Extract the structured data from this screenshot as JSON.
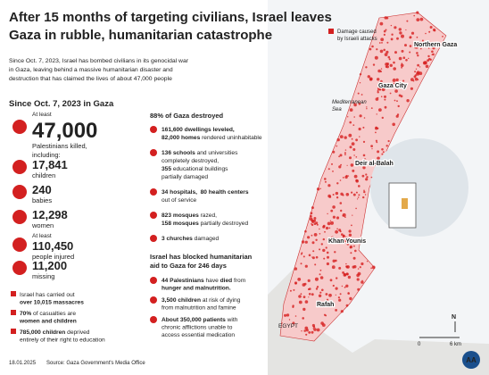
{
  "header": {
    "title": [
      "After 15 months of targeting civilians, Israel leaves",
      "Gaza in rubble, humanitarian catastrophe"
    ],
    "intro": [
      "Since Oct. 7, 2023, Israel has bombed civilians in its genocidal war",
      "in Gaza, leaving behind a massive humanitarian disaster and",
      "destruction that has claimed the lives of about 47,000 people"
    ]
  },
  "left": {
    "heading": "Since Oct. 7, 2023 in Gaza",
    "stats": [
      {
        "pre": "At least",
        "number": "47,000",
        "label": [
          "Palestinians killed,",
          "including:"
        ]
      },
      {
        "number": "17,841",
        "label": [
          "children"
        ]
      },
      {
        "number": "240",
        "label": [
          "babies"
        ]
      },
      {
        "number": "12,298",
        "label": [
          "women"
        ]
      },
      {
        "pre": "At least",
        "number": "110,450",
        "label": [
          "people injured"
        ]
      },
      {
        "number": "11,200",
        "label": [
          "missing"
        ]
      }
    ],
    "notes": [
      [
        [
          {
            "t": "Israel has carried out"
          }
        ],
        [
          {
            "t": "over 10,015 massacres",
            "b": true
          }
        ]
      ],
      [
        [
          {
            "t": "70%",
            "b": true
          },
          {
            "t": " of casualties are"
          }
        ],
        [
          {
            "t": "women and children",
            "b": true
          }
        ]
      ],
      [
        [
          {
            "t": "785,000 children",
            "b": true
          },
          {
            "t": " deprived"
          }
        ],
        [
          {
            "t": "entirely of their right to education"
          }
        ]
      ]
    ]
  },
  "middle": {
    "heading1": [
      "88% of Gaza destroyed"
    ],
    "items1": [
      [
        [
          {
            "t": "161,600 dwellings leveled,",
            "b": true
          }
        ],
        [
          {
            "t": "82,000 homes",
            "b": true
          },
          {
            "t": " rendered uninhabitable"
          }
        ]
      ],
      [
        [
          {
            "t": "136 schools",
            "b": true
          },
          {
            "t": " and universities"
          }
        ],
        [
          {
            "t": "completely destroyed,"
          }
        ],
        [
          {
            "t": "355",
            "b": true
          },
          {
            "t": " educational buildings"
          }
        ],
        [
          {
            "t": "partially damaged"
          }
        ]
      ],
      [
        [
          {
            "t": "34 hospitals,  80 health centers",
            "b": true
          }
        ],
        [
          {
            "t": "out of service"
          }
        ]
      ],
      [
        [
          {
            "t": "823 mosques",
            "b": true
          },
          {
            "t": " razed,"
          }
        ],
        [
          {
            "t": "158 mosques",
            "b": true
          },
          {
            "t": " partially destroyed"
          }
        ]
      ],
      [
        [
          {
            "t": "3 churches",
            "b": true
          },
          {
            "t": " damaged"
          }
        ]
      ]
    ],
    "heading2": [
      "Israel has blocked humanitarian",
      "aid to Gaza for 246 days"
    ],
    "items2": [
      [
        [
          {
            "t": "44 Palestinians",
            "b": true
          },
          {
            "t": " have "
          },
          {
            "t": "died",
            "b": true
          },
          {
            "t": " from"
          }
        ],
        [
          {
            "t": "hunger and malnutrition.",
            "b": true
          }
        ]
      ],
      [
        [
          {
            "t": "3,500 children",
            "b": true
          },
          {
            "t": " at risk of dying"
          }
        ],
        [
          {
            "t": "from malnutrition and famine"
          }
        ]
      ],
      [
        [
          {
            "t": "About 350,000 patients",
            "b": true
          },
          {
            "t": " with"
          }
        ],
        [
          {
            "t": "chronic afflictions unable to"
          }
        ],
        [
          {
            "t": "access essential medication"
          }
        ]
      ]
    ]
  },
  "map": {
    "legend": [
      "Damage caused",
      "by Israeli attacks"
    ],
    "sea": [
      "Mediterranean",
      "Sea"
    ],
    "country": "EGYPT",
    "places": [
      "Northern Gaza",
      "Gaza City",
      "Deir al-Balah",
      "Khan Younis",
      "Rafah"
    ],
    "north": "N",
    "scale": [
      "0",
      "6 km"
    ]
  },
  "footer": {
    "date": "18.01.2025",
    "source": "Source: Gaza Government's Media Office",
    "logo": "AA"
  }
}
